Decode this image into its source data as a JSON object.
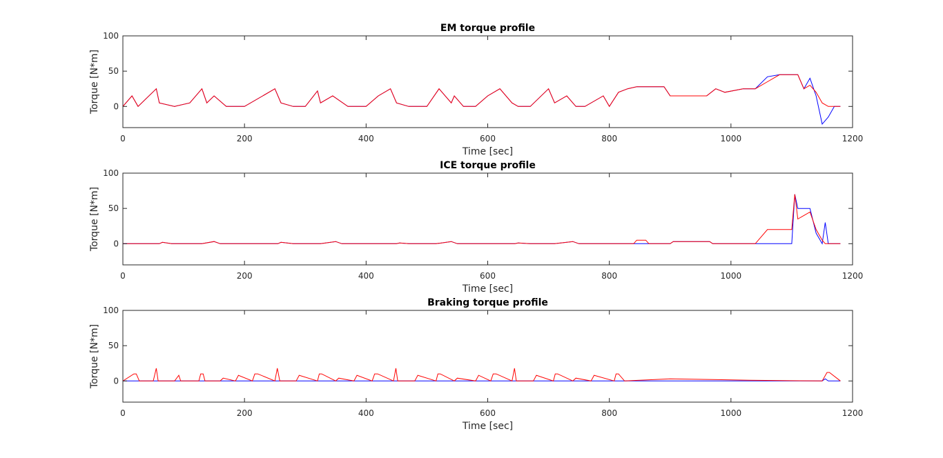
{
  "chart_data": [
    {
      "type": "line",
      "title": "EM torque profile",
      "xlabel": "Time [sec]",
      "ylabel": "Torque [N*m]",
      "xlim": [
        0,
        1200
      ],
      "ylim": [
        -30,
        100
      ],
      "xticks": [
        0,
        200,
        400,
        600,
        800,
        1000,
        1200
      ],
      "yticks": [
        0,
        50,
        100
      ],
      "grid": false,
      "series": [
        {
          "color": "#0000ff",
          "x": [
            0,
            15,
            25,
            55,
            60,
            85,
            110,
            130,
            138,
            150,
            170,
            200,
            230,
            250,
            260,
            280,
            300,
            320,
            325,
            345,
            370,
            400,
            420,
            440,
            450,
            470,
            500,
            520,
            540,
            545,
            560,
            580,
            600,
            620,
            640,
            650,
            670,
            700,
            710,
            730,
            745,
            760,
            790,
            800,
            815,
            830,
            845,
            860,
            890,
            900,
            920,
            940,
            960,
            975,
            990,
            1020,
            1040,
            1060,
            1080,
            1100,
            1110,
            1120,
            1130,
            1140,
            1150,
            1160,
            1170,
            1180
          ],
          "y": [
            0,
            15,
            0,
            25,
            5,
            0,
            5,
            25,
            5,
            15,
            0,
            0,
            15,
            25,
            5,
            0,
            0,
            22,
            5,
            15,
            0,
            0,
            15,
            25,
            5,
            0,
            0,
            25,
            5,
            15,
            0,
            0,
            15,
            25,
            5,
            0,
            0,
            25,
            5,
            15,
            0,
            0,
            15,
            0,
            20,
            25,
            28,
            28,
            28,
            15,
            15,
            15,
            15,
            25,
            20,
            25,
            25,
            42,
            45,
            45,
            45,
            25,
            40,
            15,
            -25,
            -15,
            0,
            0
          ]
        },
        {
          "color": "#ff0000",
          "x": [
            0,
            15,
            25,
            55,
            60,
            85,
            110,
            130,
            138,
            150,
            170,
            200,
            230,
            250,
            260,
            280,
            300,
            320,
            325,
            345,
            370,
            400,
            420,
            440,
            450,
            470,
            500,
            520,
            540,
            545,
            560,
            580,
            600,
            620,
            640,
            650,
            670,
            700,
            710,
            730,
            745,
            760,
            790,
            800,
            815,
            830,
            845,
            860,
            890,
            900,
            920,
            940,
            960,
            975,
            990,
            1020,
            1040,
            1060,
            1080,
            1100,
            1110,
            1120,
            1130,
            1140,
            1150,
            1160,
            1170,
            1180
          ],
          "y": [
            0,
            15,
            0,
            25,
            5,
            0,
            5,
            25,
            5,
            15,
            0,
            0,
            15,
            25,
            5,
            0,
            0,
            22,
            5,
            15,
            0,
            0,
            15,
            25,
            5,
            0,
            0,
            25,
            5,
            15,
            0,
            0,
            15,
            25,
            5,
            0,
            0,
            25,
            5,
            15,
            0,
            0,
            15,
            0,
            20,
            25,
            28,
            28,
            28,
            15,
            15,
            15,
            15,
            25,
            20,
            25,
            25,
            35,
            45,
            45,
            45,
            25,
            30,
            20,
            5,
            0,
            0,
            0
          ]
        }
      ]
    },
    {
      "type": "line",
      "title": "ICE torque profile",
      "xlabel": "Time [sec]",
      "ylabel": "Torque [N*m]",
      "xlim": [
        0,
        1200
      ],
      "ylim": [
        -30,
        100
      ],
      "xticks": [
        0,
        200,
        400,
        600,
        800,
        1000,
        1200
      ],
      "yticks": [
        0,
        50,
        100
      ],
      "grid": false,
      "series": [
        {
          "color": "#0000ff",
          "x": [
            0,
            60,
            65,
            80,
            130,
            150,
            160,
            255,
            260,
            280,
            325,
            350,
            360,
            450,
            455,
            470,
            515,
            540,
            550,
            645,
            650,
            670,
            710,
            740,
            750,
            900,
            905,
            965,
            970,
            1000,
            1040,
            1080,
            1100,
            1105,
            1110,
            1120,
            1130,
            1140,
            1150,
            1155,
            1160,
            1180
          ],
          "y": [
            0,
            0,
            2,
            0,
            0,
            3,
            0,
            0,
            2,
            0,
            0,
            3,
            0,
            0,
            1,
            0,
            0,
            3,
            0,
            0,
            1,
            0,
            0,
            3,
            0,
            0,
            3,
            3,
            0,
            0,
            0,
            0,
            0,
            70,
            50,
            50,
            50,
            15,
            0,
            30,
            0,
            0
          ]
        },
        {
          "color": "#ff0000",
          "x": [
            0,
            60,
            65,
            80,
            130,
            150,
            160,
            255,
            260,
            280,
            325,
            350,
            360,
            450,
            455,
            470,
            515,
            540,
            550,
            645,
            650,
            670,
            710,
            740,
            750,
            840,
            845,
            860,
            865,
            900,
            905,
            965,
            970,
            1000,
            1040,
            1060,
            1080,
            1100,
            1105,
            1110,
            1120,
            1130,
            1140,
            1150,
            1155,
            1160,
            1180
          ],
          "y": [
            0,
            0,
            2,
            0,
            0,
            3,
            0,
            0,
            2,
            0,
            0,
            3,
            0,
            0,
            1,
            0,
            0,
            3,
            0,
            0,
            1,
            0,
            0,
            3,
            0,
            0,
            5,
            5,
            0,
            0,
            3,
            3,
            0,
            0,
            0,
            20,
            20,
            20,
            70,
            35,
            40,
            45,
            20,
            5,
            0,
            0,
            0
          ]
        }
      ]
    },
    {
      "type": "line",
      "title": "Braking torque profile",
      "xlabel": "Time [sec]",
      "ylabel": "Torque [N*m]",
      "xlim": [
        0,
        1200
      ],
      "ylim": [
        -30,
        100
      ],
      "xticks": [
        0,
        200,
        400,
        600,
        800,
        1000,
        1200
      ],
      "yticks": [
        0,
        50,
        100
      ],
      "grid": false,
      "series": [
        {
          "color": "#0000ff",
          "x": [
            0,
            1150,
            1155,
            1160,
            1180
          ],
          "y": [
            0,
            0,
            3,
            0,
            0
          ]
        },
        {
          "color": "#ff0000",
          "x": [
            0,
            18,
            22,
            27,
            30,
            50,
            55,
            58,
            85,
            92,
            95,
            125,
            128,
            132,
            135,
            160,
            165,
            185,
            190,
            213,
            217,
            222,
            250,
            254,
            258,
            285,
            290,
            320,
            323,
            327,
            350,
            355,
            380,
            385,
            410,
            414,
            419,
            445,
            449,
            452,
            480,
            485,
            515,
            518,
            522,
            545,
            550,
            580,
            585,
            605,
            609,
            614,
            640,
            644,
            647,
            675,
            680,
            708,
            711,
            715,
            740,
            745,
            770,
            775,
            808,
            811,
            815,
            825,
            900,
            970,
            1030,
            1150,
            1158,
            1162,
            1180
          ],
          "y": [
            0,
            10,
            10,
            0,
            0,
            0,
            18,
            0,
            0,
            8,
            0,
            0,
            10,
            10,
            0,
            0,
            4,
            0,
            8,
            0,
            10,
            10,
            0,
            18,
            0,
            0,
            8,
            0,
            10,
            10,
            0,
            4,
            0,
            8,
            0,
            10,
            10,
            0,
            18,
            0,
            0,
            8,
            0,
            10,
            10,
            0,
            4,
            0,
            8,
            0,
            10,
            10,
            0,
            18,
            0,
            0,
            8,
            0,
            10,
            10,
            0,
            4,
            0,
            8,
            0,
            10,
            10,
            0,
            3,
            2,
            1,
            0,
            12,
            12,
            0
          ]
        }
      ]
    }
  ]
}
